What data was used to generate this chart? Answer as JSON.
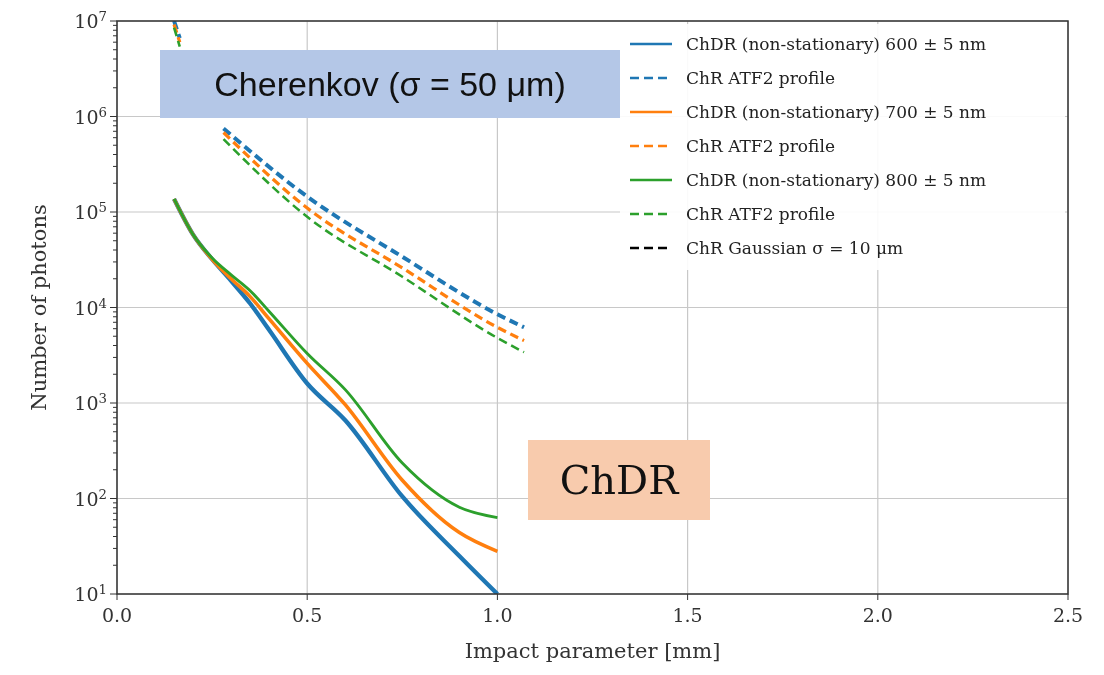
{
  "chart_data": {
    "type": "line",
    "xlabel": "Impact parameter [mm]",
    "ylabel": "Number of photons",
    "log": "y",
    "grid": true,
    "legend": "top right",
    "xlim": [
      0,
      2.5
    ],
    "ylim": [
      10,
      10000000
    ],
    "xticks": [
      {
        "value": 0,
        "label": "0.0"
      },
      {
        "value": 0.5,
        "label": "0.5"
      },
      {
        "value": 1,
        "label": "1.0"
      },
      {
        "value": 1.5,
        "label": "1.5"
      },
      {
        "value": 2,
        "label": "2.0"
      },
      {
        "value": 2.5,
        "label": "2.5"
      }
    ],
    "yticks": [
      {
        "value": 10,
        "label": "10$^{1}$"
      },
      {
        "value": 100,
        "label": "10$^{2}$"
      },
      {
        "value": 1000,
        "label": "10$^{3}$"
      },
      {
        "value": 10000,
        "label": "10$^{4}$"
      },
      {
        "value": 100000,
        "label": "10$^{5}$"
      },
      {
        "value": 1000000,
        "label": "10$^{6}$"
      },
      {
        "value": 10000000,
        "label": "10$^{7}$"
      }
    ],
    "annotations": [
      "Cherenkov (σ = 50 μm)",
      "ChDR"
    ],
    "series": [
      {
        "name": "ChDR (non-stationary) 600 ± 5 nm",
        "color": "#1f77b4",
        "line_style": "solid",
        "x": [
          0.15,
          0.2,
          0.25,
          0.3,
          0.35,
          0.4,
          0.5,
          0.6,
          0.75,
          0.9,
          1.0
        ],
        "values": [
          137000,
          58000,
          32000,
          19000,
          11000,
          5800,
          1600,
          660,
          105,
          25,
          10
        ]
      },
      {
        "name": "ChR ATF2 profile",
        "color": "#1f77b4",
        "line_style": "dashed",
        "x": [
          0.15,
          0.165,
          0.2,
          0.28,
          0.5,
          0.75,
          1.0,
          1.07
        ],
        "values": [
          10000000,
          6600000,
          null,
          750000,
          145000,
          34000,
          8500,
          6200
        ]
      },
      {
        "name": "ChDR (non-stationary) 700 ± 5 nm",
        "color": "#ff7f0e",
        "line_style": "solid",
        "x": [
          0.15,
          0.2,
          0.25,
          0.3,
          0.35,
          0.4,
          0.5,
          0.6,
          0.75,
          0.9,
          1.0
        ],
        "values": [
          137000,
          58000,
          32000,
          20000,
          13000,
          7600,
          2600,
          960,
          155,
          44,
          28
        ]
      },
      {
        "name": "ChR ATF2 profile",
        "color": "#ff7f0e",
        "line_style": "dashed",
        "x": [
          0.15,
          0.165,
          0.2,
          0.28,
          0.5,
          0.75,
          1.0,
          1.07
        ],
        "values": [
          9200000,
          6000000,
          null,
          680000,
          110000,
          26000,
          6200,
          4500
        ]
      },
      {
        "name": "ChDR (non-stationary) 800 ± 5 nm",
        "color": "#2ca02c",
        "line_style": "solid",
        "x": [
          0.15,
          0.2,
          0.25,
          0.3,
          0.35,
          0.4,
          0.5,
          0.6,
          0.75,
          0.9,
          1.0
        ],
        "values": [
          137000,
          58000,
          33000,
          22000,
          15000,
          9100,
          3300,
          1380,
          235,
          81,
          63
        ]
      },
      {
        "name": "ChR ATF2 profile",
        "color": "#2ca02c",
        "line_style": "dashed",
        "x": [
          0.15,
          0.165,
          0.2,
          0.28,
          0.5,
          0.75,
          1.0,
          1.07
        ],
        "values": [
          8500000,
          5400000,
          null,
          580000,
          89000,
          21000,
          4800,
          3400
        ]
      },
      {
        "name": "ChR Gaussian σ = 10 μm",
        "color": "#000000",
        "line_style": "dashed"
      }
    ]
  }
}
